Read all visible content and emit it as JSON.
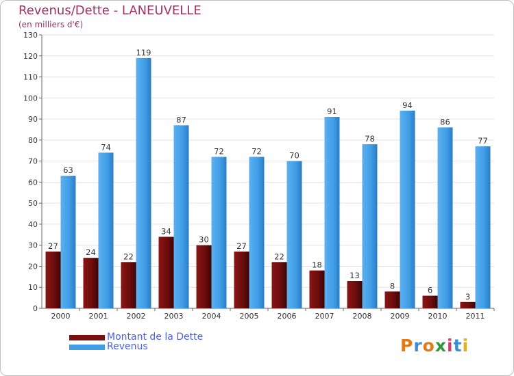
{
  "header": {
    "title": "Revenus/Dette - LANEUVELLE",
    "subtitle": "(en milliers d'€)"
  },
  "colors": {
    "debt": "#7a1010",
    "revenue": "#3f9de6",
    "title": "#a0325f",
    "legend_text": "#4a5ee8"
  },
  "logo": {
    "letters": [
      "P",
      "r",
      "o",
      "x",
      "i",
      "t",
      "i"
    ],
    "colors": [
      "#e07a1a",
      "#3a8fd8",
      "#e07a1a",
      "#2a9a3a",
      "#d43a6a",
      "#3a8fd8",
      "#e0b020"
    ]
  },
  "chart_data": {
    "type": "bar",
    "title": "Revenus/Dette - LANEUVELLE",
    "subtitle": "(en milliers d'€)",
    "xlabel": "",
    "ylabel": "",
    "ylim": [
      0,
      130
    ],
    "yticks": [
      0,
      10,
      20,
      30,
      40,
      50,
      60,
      70,
      80,
      90,
      100,
      110,
      120,
      130
    ],
    "grid": true,
    "legend_position": "bottom-left",
    "categories": [
      "2000",
      "2001",
      "2002",
      "2003",
      "2004",
      "2005",
      "2006",
      "2007",
      "2008",
      "2009",
      "2010",
      "2011"
    ],
    "series": [
      {
        "name": "Montant de la Dette",
        "values": [
          27,
          24,
          22,
          34,
          30,
          27,
          22,
          18,
          13,
          8,
          6,
          3
        ]
      },
      {
        "name": "Revenus",
        "values": [
          63,
          74,
          119,
          87,
          72,
          72,
          70,
          91,
          78,
          94,
          86,
          77
        ]
      }
    ]
  }
}
